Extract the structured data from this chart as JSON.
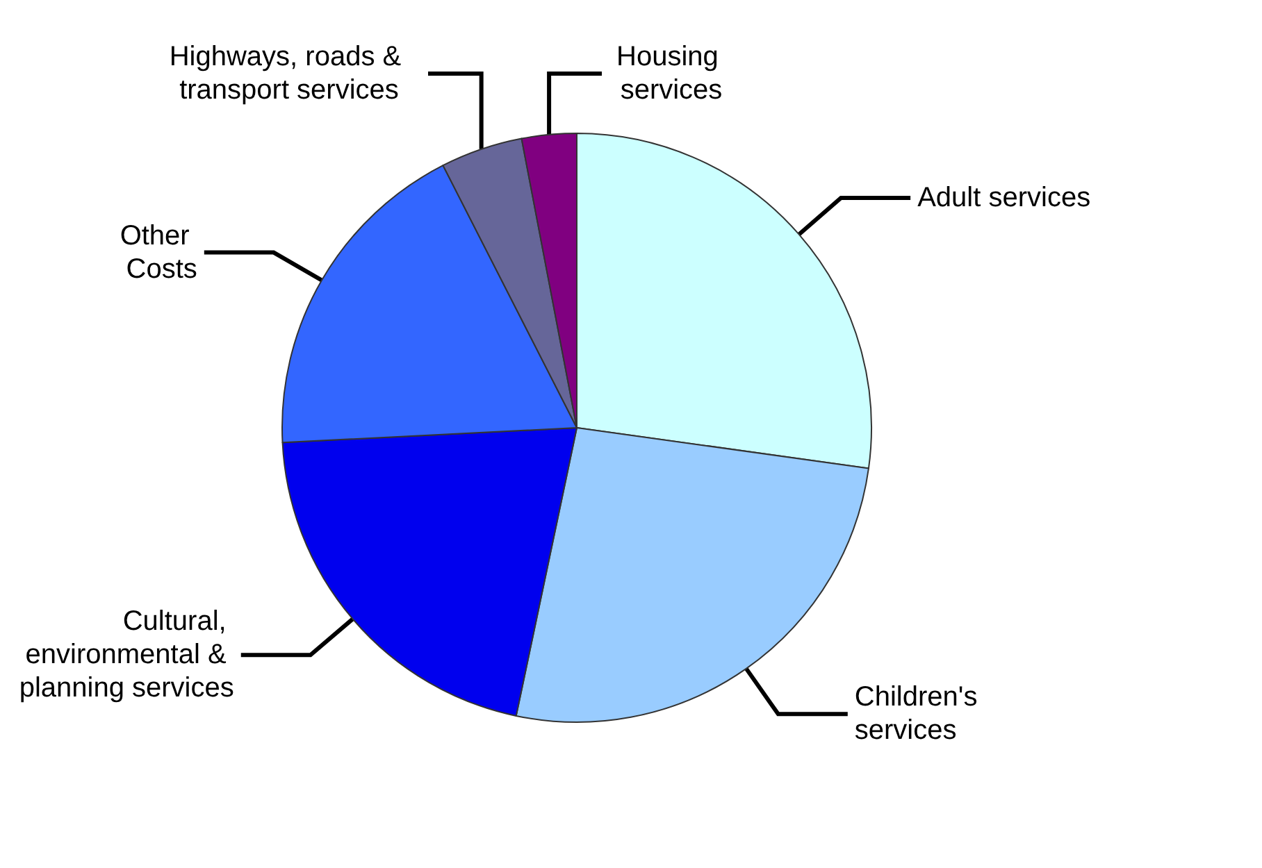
{
  "chart_data": {
    "type": "pie",
    "categories": [
      "Adult services",
      "Children's services",
      "Cultural, environmental & planning services",
      "Other Costs",
      "Highways, roads & transport services",
      "Housing services"
    ],
    "values": [
      27.2,
      26.1,
      20.9,
      18.3,
      4.5,
      3.0
    ],
    "colors": [
      "#ccffff",
      "#99ccff",
      "#0000ee",
      "#3366ff",
      "#666699",
      "#800080"
    ],
    "legend": false
  }
}
